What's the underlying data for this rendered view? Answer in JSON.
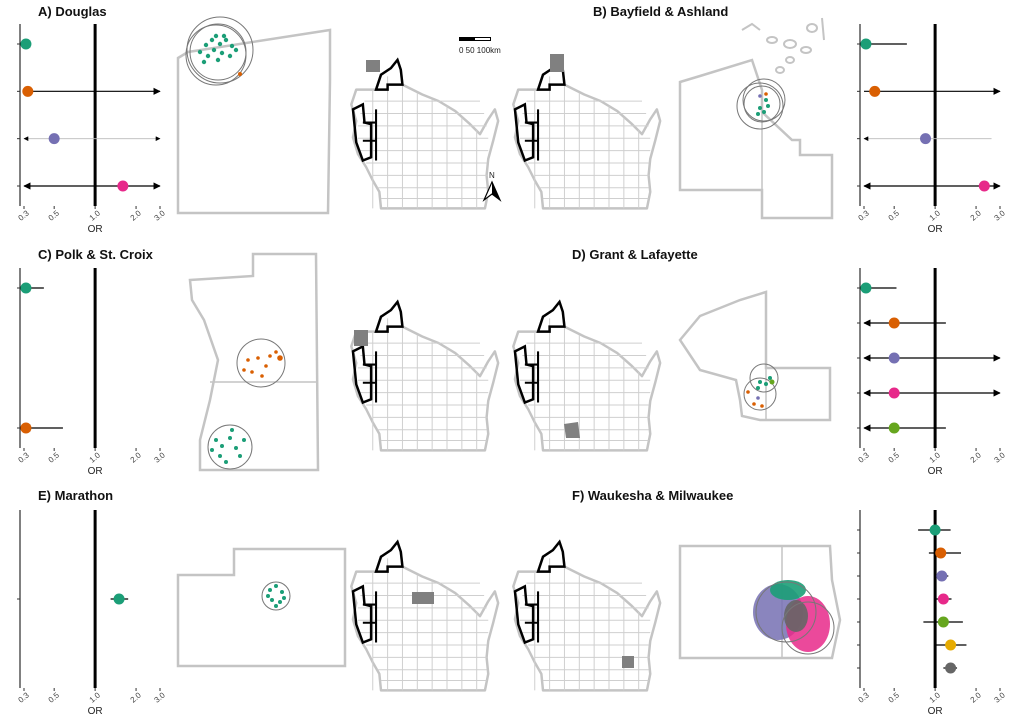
{
  "colors": {
    "teal": "#1b9e77",
    "orange": "#d95f02",
    "purple": "#7570b3",
    "magenta": "#e7298a",
    "green": "#66a61e",
    "gold": "#e6ab02",
    "gray": "#666666",
    "county_line": "#c4c4c4",
    "highlight": "#808080"
  },
  "axis": {
    "label": "OR",
    "ticks": [
      {
        "v": 0.3,
        "t": "0.3"
      },
      {
        "v": 0.5,
        "t": "0.5"
      },
      {
        "v": 1.0,
        "t": "1.0"
      },
      {
        "v": 2.0,
        "t": "2.0"
      },
      {
        "v": 3.0,
        "t": "3.0"
      }
    ],
    "ref_line": 1.0
  },
  "scale_bar": {
    "label": "0   50 100km"
  },
  "north_arrow": {
    "label": "N"
  },
  "panels": [
    {
      "id": "A",
      "title": "A) Douglas",
      "side": "left",
      "estimates": [
        {
          "color": "teal",
          "or": 0.31,
          "lo": 0.3,
          "hi": 0.31,
          "arrow_lo": true,
          "arrow_hi": false
        },
        {
          "color": "orange",
          "or": 0.32,
          "lo": 0.3,
          "hi": 3.0,
          "arrow_lo": false,
          "arrow_hi": true
        },
        {
          "color": "purple",
          "or": 0.5,
          "lo": 0.3,
          "hi": 3.0,
          "arrow_lo": true,
          "arrow_hi": true,
          "thin": true
        },
        {
          "color": "magenta",
          "or": 1.6,
          "lo": 0.3,
          "hi": 3.0,
          "arrow_lo": true,
          "arrow_hi": true
        }
      ]
    },
    {
      "id": "B",
      "title": "B) Bayfield & Ashland",
      "side": "right",
      "estimates": [
        {
          "color": "teal",
          "or": 0.31,
          "lo": 0.3,
          "hi": 0.62,
          "arrow_lo": true,
          "arrow_hi": false
        },
        {
          "color": "orange",
          "or": 0.36,
          "lo": 0.3,
          "hi": 3.0,
          "arrow_lo": false,
          "arrow_hi": true
        },
        {
          "color": "purple",
          "or": 0.85,
          "lo": 0.3,
          "hi": 2.6,
          "arrow_lo": true,
          "arrow_hi": false,
          "thin": true
        },
        {
          "color": "magenta",
          "or": 2.3,
          "lo": 0.3,
          "hi": 3.0,
          "arrow_lo": true,
          "arrow_hi": true
        }
      ]
    },
    {
      "id": "C",
      "title": "C) Polk & St. Croix",
      "side": "left",
      "estimates": [
        {
          "color": "teal",
          "or": 0.31,
          "lo": 0.3,
          "hi": 0.42,
          "arrow_lo": true,
          "arrow_hi": false
        },
        {
          "color": "orange",
          "or": 0.31,
          "lo": 0.3,
          "hi": 0.58,
          "arrow_lo": true,
          "arrow_hi": false
        }
      ]
    },
    {
      "id": "D",
      "title": "D) Grant & Lafayette",
      "side": "right",
      "estimates": [
        {
          "color": "teal",
          "or": 0.31,
          "lo": 0.3,
          "hi": 0.52,
          "arrow_lo": true,
          "arrow_hi": false
        },
        {
          "color": "orange",
          "or": 0.5,
          "lo": 0.3,
          "hi": 1.2,
          "arrow_lo": true,
          "arrow_hi": false
        },
        {
          "color": "purple",
          "or": 0.5,
          "lo": 0.3,
          "hi": 3.0,
          "arrow_lo": true,
          "arrow_hi": true
        },
        {
          "color": "magenta",
          "or": 0.5,
          "lo": 0.3,
          "hi": 3.0,
          "arrow_lo": true,
          "arrow_hi": true
        },
        {
          "color": "green",
          "or": 0.5,
          "lo": 0.3,
          "hi": 1.2,
          "arrow_lo": true,
          "arrow_hi": false
        }
      ]
    },
    {
      "id": "E",
      "title": "E) Marathon",
      "side": "left",
      "estimates": [
        {
          "color": "teal",
          "or": 1.5,
          "lo": 1.3,
          "hi": 1.75,
          "arrow_lo": false,
          "arrow_hi": false
        }
      ]
    },
    {
      "id": "F",
      "title": "F) Waukesha & Milwaukee",
      "side": "right",
      "estimates": [
        {
          "color": "teal",
          "or": 1.0,
          "lo": 0.75,
          "hi": 1.3,
          "arrow_lo": false,
          "arrow_hi": false
        },
        {
          "color": "orange",
          "or": 1.1,
          "lo": 0.9,
          "hi": 1.55,
          "arrow_lo": false,
          "arrow_hi": false
        },
        {
          "color": "purple",
          "or": 1.12,
          "lo": 1.0,
          "hi": 1.25,
          "arrow_lo": false,
          "arrow_hi": false
        },
        {
          "color": "magenta",
          "or": 1.15,
          "lo": 1.0,
          "hi": 1.32,
          "arrow_lo": false,
          "arrow_hi": false
        },
        {
          "color": "green",
          "or": 1.15,
          "lo": 0.82,
          "hi": 1.6,
          "arrow_lo": false,
          "arrow_hi": false
        },
        {
          "color": "gold",
          "or": 1.3,
          "lo": 1.0,
          "hi": 1.7,
          "arrow_lo": false,
          "arrow_hi": false
        },
        {
          "color": "gray",
          "or": 1.3,
          "lo": 1.15,
          "hi": 1.45,
          "arrow_lo": false,
          "arrow_hi": false
        }
      ]
    }
  ]
}
